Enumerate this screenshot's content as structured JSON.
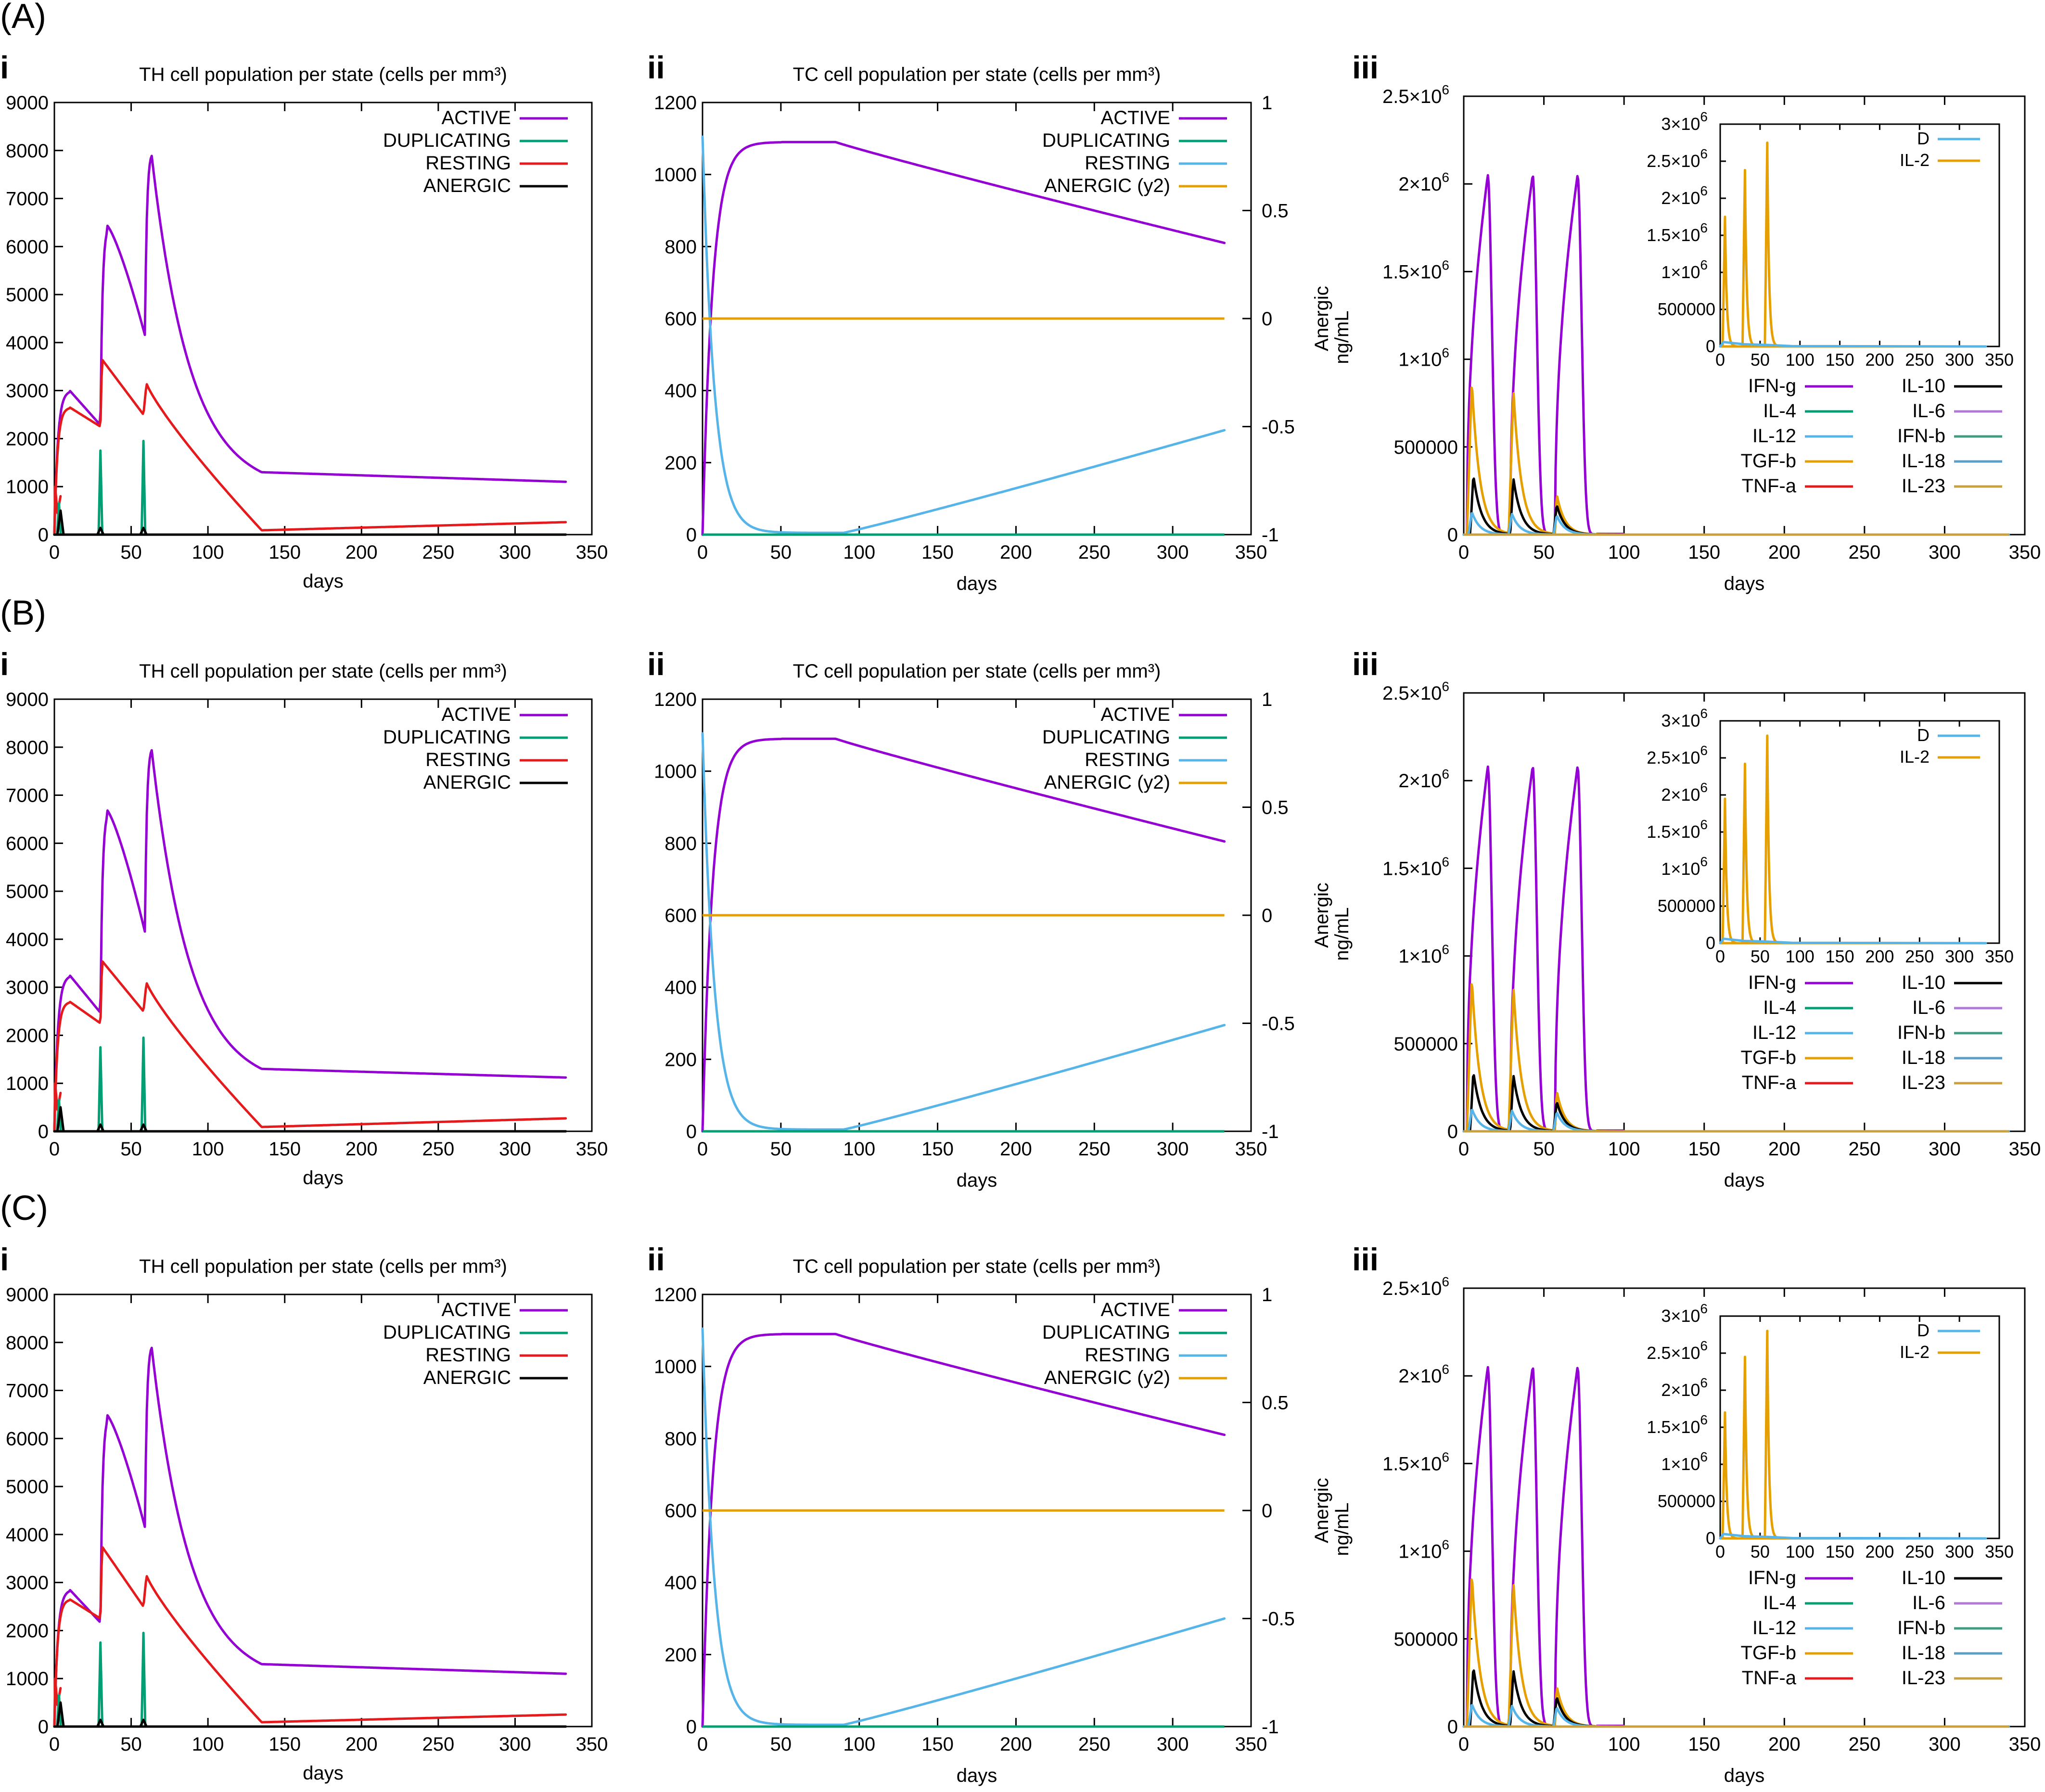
{
  "figure": {
    "rows": [
      {
        "label": "(A)",
        "peaks": {
          "th_active": [
            3000,
            6450,
            8000
          ],
          "th_resting": [
            2650,
            3650,
            3150
          ],
          "th_active_final": 1100,
          "th_resting_final": 260,
          "tc_final_active": 810,
          "tc_final_resting": 290,
          "ifn_peak": 2050000,
          "il2_peaks": [
            1750000,
            2380000,
            2750000
          ]
        }
      },
      {
        "label": "(B)",
        "peaks": {
          "th_active": [
            3250,
            6700,
            8050
          ],
          "th_resting": [
            2700,
            3550,
            3100
          ],
          "th_active_final": 1120,
          "th_resting_final": 270,
          "tc_final_active": 805,
          "tc_final_resting": 295,
          "ifn_peak": 2080000,
          "il2_peaks": [
            1950000,
            2420000,
            2800000
          ]
        }
      },
      {
        "label": "(C)",
        "peaks": {
          "th_active": [
            2850,
            6500,
            8000
          ],
          "th_resting": [
            2650,
            3750,
            3150
          ],
          "th_active_final": 1100,
          "th_resting_final": 250,
          "tc_final_active": 810,
          "tc_final_resting": 300,
          "ifn_peak": 2050000,
          "il2_peaks": [
            1700000,
            2450000,
            2800000
          ]
        }
      }
    ],
    "sub_labels": [
      "i",
      "ii",
      "iii"
    ]
  },
  "chart_data": [
    {
      "type": "line",
      "panel": "i",
      "title": "TH cell population per state (cells per mm³)",
      "xlabel": "days",
      "ylabel": "",
      "xlim": [
        0,
        350
      ],
      "ylim": [
        0,
        9000
      ],
      "xticks": [
        "0",
        "50",
        "100",
        "150",
        "200",
        "250",
        "300",
        "350"
      ],
      "yticks": [
        "0",
        "1000",
        "2000",
        "3000",
        "4000",
        "5000",
        "6000",
        "7000",
        "8000",
        "9000"
      ],
      "legend": "top-right",
      "series": [
        {
          "name": "ACTIVE",
          "color": "#9400d3"
        },
        {
          "name": "DUPLICATING",
          "color": "#009e73"
        },
        {
          "name": "RESTING",
          "color": "#e41a1c"
        },
        {
          "name": "ANERGIC",
          "color": "#000000"
        }
      ]
    },
    {
      "type": "line",
      "panel": "ii",
      "title": "TC cell population per state (cells per mm³)",
      "xlabel": "days",
      "ylabel": "",
      "y2label": "Anergic",
      "xlim": [
        0,
        350
      ],
      "ylim": [
        0,
        1200
      ],
      "y2lim": [
        -1,
        1
      ],
      "xticks": [
        "0",
        "50",
        "100",
        "150",
        "200",
        "250",
        "300",
        "350"
      ],
      "yticks": [
        "0",
        "200",
        "400",
        "600",
        "800",
        "1000",
        "1200"
      ],
      "y2ticks": [
        "-1",
        "-0.5",
        "0",
        "0.5",
        "1"
      ],
      "legend": "top-right",
      "series": [
        {
          "name": "ACTIVE",
          "color": "#9400d3"
        },
        {
          "name": "DUPLICATING",
          "color": "#009e73"
        },
        {
          "name": "RESTING",
          "color": "#56b4e9"
        },
        {
          "name": "ANERGIC (y2)",
          "color": "#e69f00"
        }
      ]
    },
    {
      "type": "line",
      "panel": "iii",
      "title": "",
      "xlabel": "days",
      "ylabel": "ng/mL",
      "xlim": [
        0,
        350
      ],
      "ylim": [
        0,
        2500000
      ],
      "xticks": [
        "0",
        "50",
        "100",
        "150",
        "200",
        "250",
        "300",
        "350"
      ],
      "ytick_mantissas": [
        "0",
        "500000",
        "1×10",
        "1.5×10",
        "2×10",
        "2.5×10"
      ],
      "ytick_exponent": "6",
      "legend": "bottom-right",
      "series": [
        {
          "name": "IFN-g",
          "color": "#9400d3"
        },
        {
          "name": "IL-4",
          "color": "#009e73"
        },
        {
          "name": "IL-12",
          "color": "#56b4e9"
        },
        {
          "name": "TGF-b",
          "color": "#e69f00"
        },
        {
          "name": "TNF-a",
          "color": "#e41a1c"
        },
        {
          "name": "IL-10",
          "color": "#000000"
        },
        {
          "name": "IL-6",
          "color": "#b07ad6"
        },
        {
          "name": "IFN-b",
          "color": "#3f9e82"
        },
        {
          "name": "IL-18",
          "color": "#5d9ec9"
        },
        {
          "name": "IL-23",
          "color": "#c8a040"
        }
      ],
      "inset": {
        "xlim": [
          0,
          350
        ],
        "ylim": [
          0,
          3000000
        ],
        "xticks": [
          "0",
          "50",
          "100",
          "150",
          "200",
          "250",
          "300",
          "350"
        ],
        "ytick_mantissas": [
          "0",
          "500000",
          "1×10",
          "1.5×10",
          "2×10",
          "2.5×10",
          "3×10"
        ],
        "ytick_exponent": "6",
        "series": [
          {
            "name": "D",
            "color": "#56b4e9"
          },
          {
            "name": "IL-2",
            "color": "#e69f00"
          }
        ]
      }
    }
  ]
}
